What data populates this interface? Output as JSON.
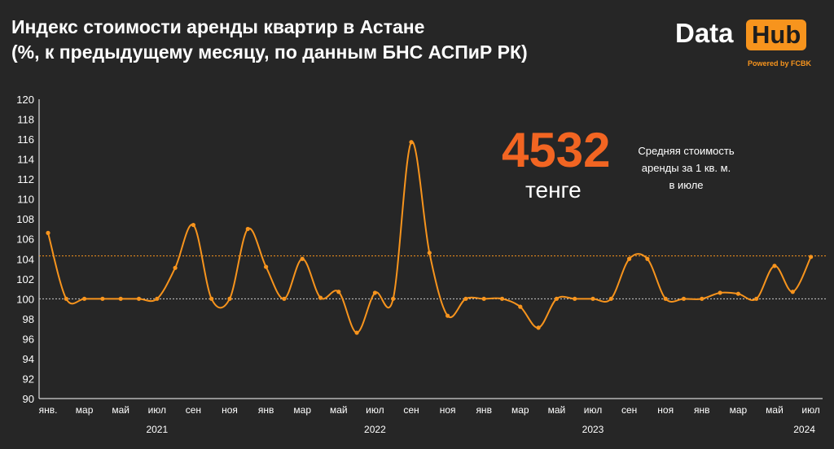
{
  "title": {
    "line1": "Индекс стоимости аренды квартир в Астане",
    "line2": "(%, к предыдущему месяцу, по данным БНС АСПиР РК)"
  },
  "logo": {
    "data": "Data",
    "hub": "Hub",
    "powered": "Powered by FCBK"
  },
  "callout": {
    "value": "4532",
    "unit": "тенге",
    "note_line1": "Средняя стоимость",
    "note_line2": "аренды за 1 кв. м.",
    "note_line3": "в июле"
  },
  "colors": {
    "background": "#262626",
    "line": "#f7941d",
    "accent": "#f26522",
    "reference_line": "#cccccc"
  },
  "chart_data": {
    "type": "line",
    "x": [
      "2021-01",
      "2021-02",
      "2021-03",
      "2021-04",
      "2021-05",
      "2021-06",
      "2021-07",
      "2021-08",
      "2021-09",
      "2021-10",
      "2021-11",
      "2021-12",
      "2022-01",
      "2022-02",
      "2022-03",
      "2022-04",
      "2022-05",
      "2022-06",
      "2022-07",
      "2022-08",
      "2022-09",
      "2022-10",
      "2022-11",
      "2022-12",
      "2023-01",
      "2023-02",
      "2023-03",
      "2023-04",
      "2023-05",
      "2023-06",
      "2023-07",
      "2023-08",
      "2023-09",
      "2023-10",
      "2023-11",
      "2023-12",
      "2024-01",
      "2024-02",
      "2024-03",
      "2024-04",
      "2024-05",
      "2024-06",
      "2024-07"
    ],
    "values": [
      106.6,
      100.0,
      100.0,
      100.0,
      100.0,
      100.0,
      100.0,
      103.1,
      107.4,
      100.0,
      100.0,
      107.0,
      103.2,
      100.0,
      104.0,
      100.1,
      100.7,
      96.6,
      100.6,
      100.0,
      115.7,
      104.6,
      98.3,
      100.0,
      100.0,
      100.0,
      99.2,
      97.1,
      100.0,
      100.0,
      100.0,
      100.0,
      104.0,
      104.0,
      100.0,
      100.0,
      100.0,
      100.6,
      100.5,
      100.0,
      103.3,
      100.7,
      104.2
    ],
    "ylim": [
      90,
      120
    ],
    "yticks": [
      90,
      92,
      94,
      96,
      98,
      100,
      102,
      104,
      106,
      108,
      110,
      112,
      114,
      116,
      118,
      120
    ],
    "xtick_labels": [
      "янв.",
      "мар",
      "май",
      "июл",
      "сен",
      "ноя",
      "янв",
      "мар",
      "май",
      "июл",
      "сен",
      "ноя",
      "янв",
      "мар",
      "май",
      "июл",
      "сен",
      "ноя",
      "янв",
      "мар",
      "май",
      "июл"
    ],
    "year_labels": [
      "2021",
      "2022",
      "2023",
      "2024"
    ],
    "reference_lines": [
      100,
      104.3
    ],
    "grid": false,
    "legend": "none"
  }
}
